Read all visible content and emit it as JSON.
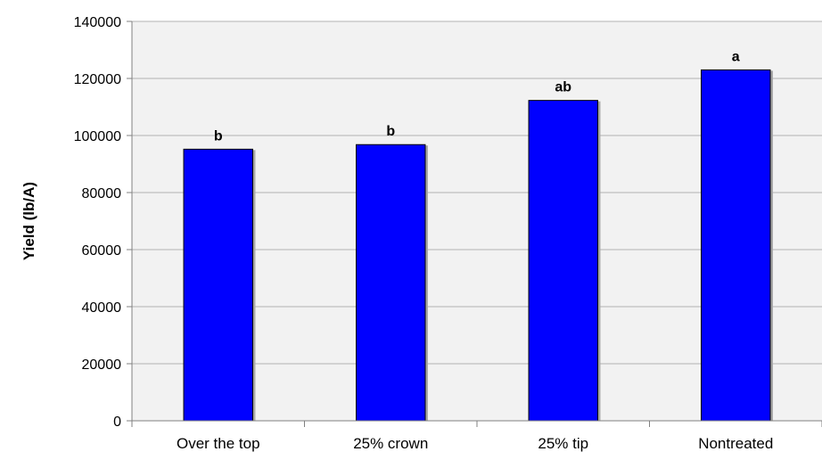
{
  "chart_data": {
    "type": "bar",
    "title": "",
    "xlabel": "",
    "ylabel": "Yield (lb/A)",
    "ylim": [
      0,
      140000
    ],
    "yticks": [
      0,
      20000,
      40000,
      60000,
      80000,
      100000,
      120000,
      140000
    ],
    "categories": [
      "Over the top",
      "25% crown",
      "25% tip",
      "Nontreated"
    ],
    "values": [
      95200,
      96800,
      112300,
      123000
    ],
    "data_labels": [
      "b",
      "b",
      "ab",
      "a"
    ],
    "grid": true,
    "legend": "none",
    "colors": {
      "bar": "#0000ff",
      "bar_outline": "#000000",
      "bar_shadow": "#a6a6a6",
      "plot_background": "#f2f2f2",
      "gridline": "#b3b3b3",
      "axis": "#808080"
    }
  }
}
